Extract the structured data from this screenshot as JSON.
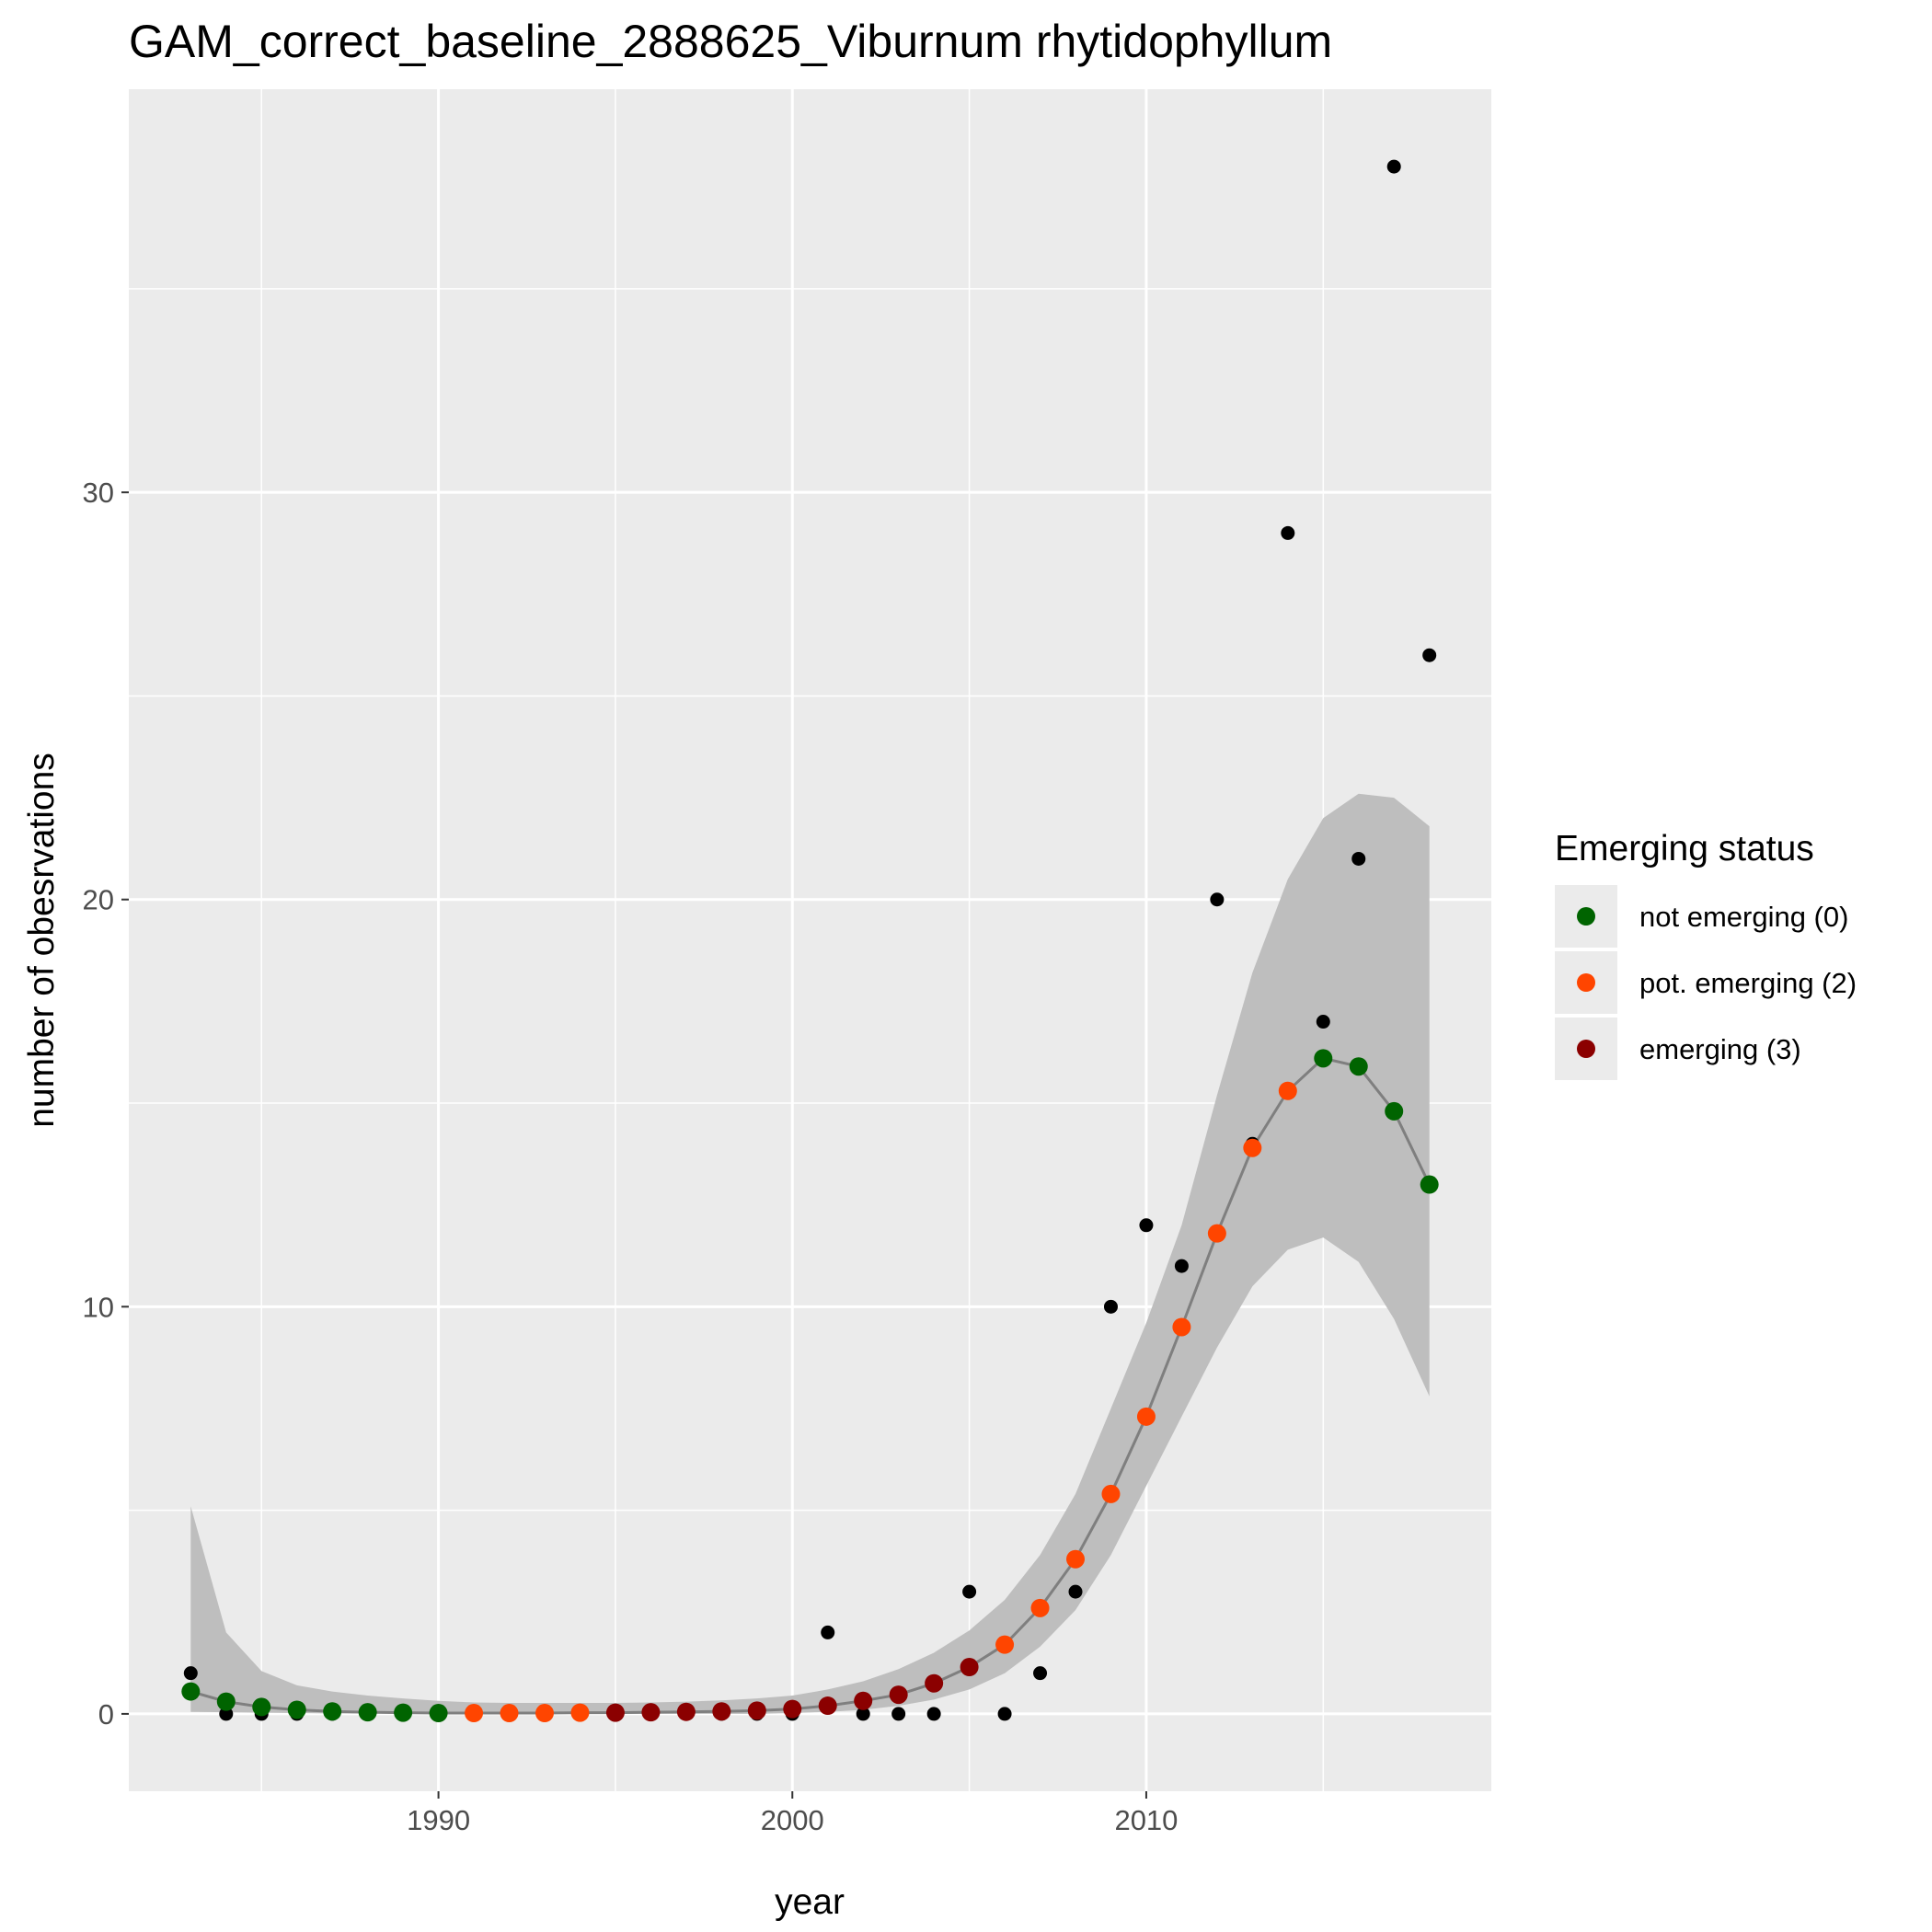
{
  "chart_data": {
    "type": "scatter",
    "title": "GAM_correct_baseline_2888625_Viburnum rhytidophyllum",
    "xlabel": "year",
    "ylabel": "number of obesrvations",
    "xlim": [
      1981.25,
      2019.75
    ],
    "ylim": [
      -1.9,
      39.9
    ],
    "x_ticks": [
      1990,
      2000,
      2010
    ],
    "y_ticks": [
      0,
      10,
      20,
      30
    ],
    "x_minor_ticks": [
      1985,
      1995,
      2005,
      2015
    ],
    "y_minor_ticks": [
      5,
      15,
      25,
      35
    ],
    "grid": true,
    "panel_background": "#ebebeb",
    "observed": {
      "color": "#000000",
      "x": [
        1983,
        1984,
        1985,
        1986,
        1987,
        1988,
        1989,
        1990,
        1991,
        1992,
        1993,
        1994,
        1995,
        1996,
        1997,
        1998,
        1999,
        2000,
        2001,
        2002,
        2003,
        2004,
        2005,
        2006,
        2007,
        2008,
        2009,
        2010,
        2011,
        2012,
        2013,
        2014,
        2015,
        2016,
        2017,
        2018
      ],
      "y": [
        1,
        0,
        0,
        0,
        0,
        0,
        0,
        0,
        0,
        0,
        0,
        0,
        0,
        0,
        0,
        0,
        0,
        0,
        2,
        0,
        0,
        0,
        3,
        0,
        1,
        3,
        10,
        12,
        11,
        20,
        14,
        29,
        17,
        21,
        38,
        26
      ]
    },
    "fit": {
      "line_color": "#7f7f7f",
      "band_color": "#bebebe",
      "x": [
        1983,
        1984,
        1985,
        1986,
        1987,
        1988,
        1989,
        1990,
        1991,
        1992,
        1993,
        1994,
        1995,
        1996,
        1997,
        1998,
        1999,
        2000,
        2001,
        2002,
        2003,
        2004,
        2005,
        2006,
        2007,
        2008,
        2009,
        2010,
        2011,
        2012,
        2013,
        2014,
        2015,
        2016,
        2017,
        2018
      ],
      "y": [
        0.55,
        0.3,
        0.17,
        0.1,
        0.06,
        0.04,
        0.03,
        0.02,
        0.02,
        0.02,
        0.02,
        0.03,
        0.03,
        0.04,
        0.05,
        0.06,
        0.08,
        0.12,
        0.2,
        0.32,
        0.47,
        0.75,
        1.15,
        1.7,
        2.6,
        3.8,
        5.4,
        7.3,
        9.5,
        11.8,
        13.9,
        15.3,
        16.1,
        15.9,
        14.8,
        13.0
      ],
      "lower": [
        0.05,
        0.04,
        0.03,
        0.02,
        0.01,
        0.01,
        0.01,
        0.0,
        0.0,
        0.0,
        0.0,
        0.0,
        0.0,
        0.0,
        0.0,
        0.0,
        0.0,
        0.02,
        0.05,
        0.1,
        0.2,
        0.35,
        0.6,
        1.0,
        1.65,
        2.55,
        3.9,
        5.6,
        7.3,
        9.0,
        10.5,
        11.4,
        11.7,
        11.1,
        9.7,
        7.8
      ],
      "upper": [
        5.1,
        2.0,
        1.05,
        0.7,
        0.55,
        0.45,
        0.38,
        0.32,
        0.28,
        0.27,
        0.27,
        0.27,
        0.27,
        0.28,
        0.3,
        0.33,
        0.38,
        0.45,
        0.6,
        0.8,
        1.1,
        1.5,
        2.05,
        2.8,
        3.9,
        5.4,
        7.5,
        9.6,
        12.0,
        15.2,
        18.2,
        20.5,
        22.0,
        22.6,
        22.5,
        21.8
      ]
    },
    "status_points": {
      "x": [
        1983,
        1984,
        1985,
        1986,
        1987,
        1988,
        1989,
        1990,
        1991,
        1992,
        1993,
        1994,
        1995,
        1996,
        1997,
        1998,
        1999,
        2000,
        2001,
        2002,
        2003,
        2004,
        2005,
        2006,
        2007,
        2008,
        2009,
        2010,
        2011,
        2012,
        2013,
        2014,
        2015,
        2016,
        2017,
        2018
      ],
      "status": [
        0,
        0,
        0,
        0,
        0,
        0,
        0,
        0,
        2,
        2,
        2,
        2,
        3,
        3,
        3,
        3,
        3,
        3,
        3,
        3,
        3,
        3,
        3,
        2,
        2,
        2,
        2,
        2,
        2,
        2,
        2,
        2,
        0,
        0,
        0,
        0
      ]
    },
    "legend": {
      "title": "Emerging status",
      "position": "right",
      "entries": [
        {
          "label": "not emerging (0)",
          "status": 0,
          "color": "#006400"
        },
        {
          "label": "pot. emerging (2)",
          "status": 2,
          "color": "#ff4500"
        },
        {
          "label": "emerging (3)",
          "status": 3,
          "color": "#8b0000"
        }
      ]
    }
  }
}
